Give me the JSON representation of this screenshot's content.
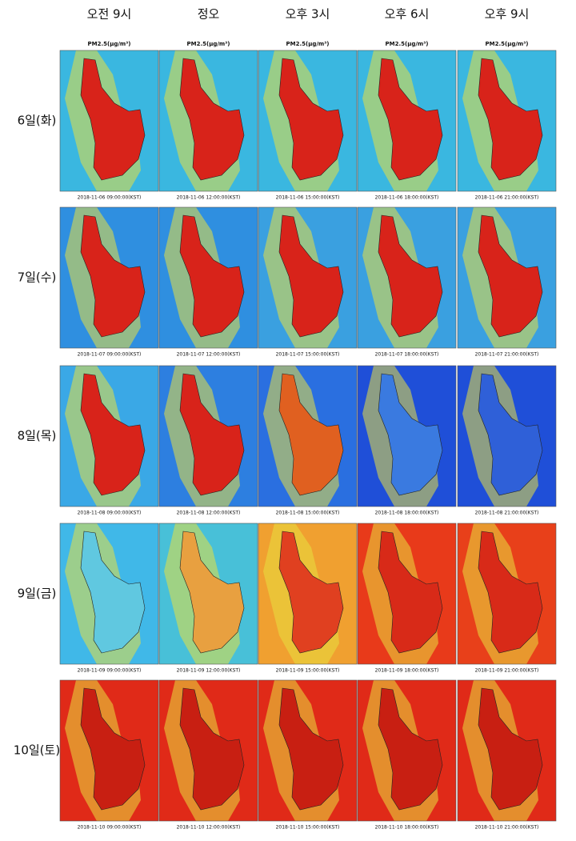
{
  "columns": [
    {
      "header": "오전 9시",
      "unit_label": "PM2.5(μg/m³)"
    },
    {
      "header": "정오",
      "unit_label": "PM2.5(μg/m³)"
    },
    {
      "header": "오후 3시",
      "unit_label": "PM2.5(μg/m³)"
    },
    {
      "header": "오후 6시",
      "unit_label": "PM2.5(μg/m³)"
    },
    {
      "header": "오후 9시",
      "unit_label": "PM2.5(μg/m³)"
    }
  ],
  "rows": [
    {
      "label": "6일(화)",
      "timestamps": [
        "2018-11-06 09:00:00(KST)",
        "2018-11-06 12:00:00(KST)",
        "2018-11-06 15:00:00(KST)",
        "2018-11-06 18:00:00(KST)",
        "2018-11-06 21:00:00(KST)"
      ]
    },
    {
      "label": "7일(수)",
      "timestamps": [
        "2018-11-07 09:00:00(KST)",
        "2018-11-07 12:00:00(KST)",
        "2018-11-07 15:00:00(KST)",
        "2018-11-07 18:00:00(KST)",
        "2018-11-07 21:00:00(KST)"
      ]
    },
    {
      "label": "8일(목)",
      "timestamps": [
        "2018-11-08 09:00:00(KST)",
        "2018-11-08 12:00:00(KST)",
        "2018-11-08 15:00:00(KST)",
        "2018-11-08 18:00:00(KST)",
        "2018-11-08 21:00:00(KST)"
      ]
    },
    {
      "label": "9일(금)",
      "timestamps": [
        "2018-11-09 09:00:00(KST)",
        "2018-11-09 12:00:00(KST)",
        "2018-11-09 15:00:00(KST)",
        "2018-11-09 18:00:00(KST)",
        "2018-11-09 21:00:00(KST)"
      ]
    },
    {
      "label": "10일(토)",
      "timestamps": [
        "2018-11-10 09:00:00(KST)",
        "2018-11-10 12:00:00(KST)",
        "2018-11-10 15:00:00(KST)",
        "2018-11-10 18:00:00(KST)",
        "2018-11-10 21:00:00(KST)"
      ]
    }
  ]
}
